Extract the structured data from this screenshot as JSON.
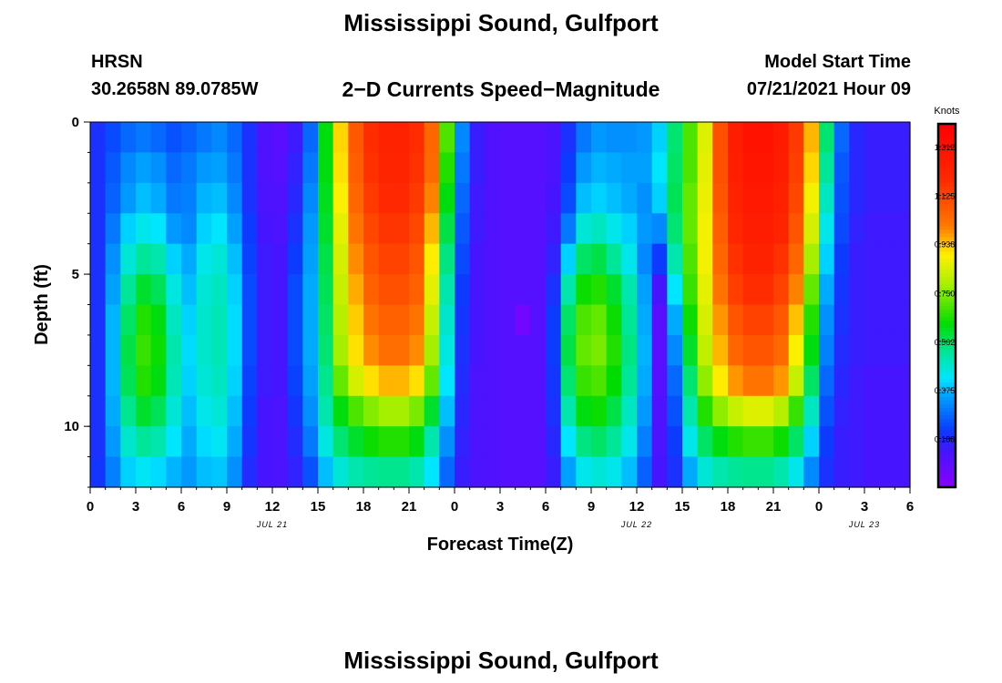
{
  "header": {
    "title": "Mississippi Sound, Gulfport",
    "station": "HRSN",
    "coords": "30.2658N  89.0785W",
    "model_label": "Model Start Time",
    "model_time": "07/21/2021 Hour 09",
    "footer_title": "Mississippi Sound, Gulfport"
  },
  "chart_data": {
    "type": "heatmap",
    "title": "2−D Currents Speed−Magnitude",
    "xlabel": "Forecast Time(Z)",
    "ylabel": "Depth (ft)",
    "colorbar_label": "Knots",
    "xlim": [
      0,
      54
    ],
    "ylim": [
      12,
      0
    ],
    "x_ticks": [
      {
        "v": 0,
        "label": "0"
      },
      {
        "v": 3,
        "label": "3"
      },
      {
        "v": 6,
        "label": "6"
      },
      {
        "v": 9,
        "label": "9"
      },
      {
        "v": 12,
        "label": "12"
      },
      {
        "v": 15,
        "label": "15"
      },
      {
        "v": 18,
        "label": "18"
      },
      {
        "v": 21,
        "label": "21"
      },
      {
        "v": 24,
        "label": "0"
      },
      {
        "v": 27,
        "label": "3"
      },
      {
        "v": 30,
        "label": "6"
      },
      {
        "v": 33,
        "label": "9"
      },
      {
        "v": 36,
        "label": "12"
      },
      {
        "v": 39,
        "label": "15"
      },
      {
        "v": 42,
        "label": "18"
      },
      {
        "v": 45,
        "label": "21"
      },
      {
        "v": 48,
        "label": "0"
      },
      {
        "v": 51,
        "label": "3"
      },
      {
        "v": 54,
        "label": "6"
      }
    ],
    "date_labels": [
      {
        "v": 12,
        "label": "JUL 21"
      },
      {
        "v": 36,
        "label": "JUL 22"
      },
      {
        "v": 51,
        "label": "JUL 23"
      }
    ],
    "y_ticks": [
      {
        "v": 0,
        "label": "0"
      },
      {
        "v": 5,
        "label": "5"
      },
      {
        "v": 10,
        "label": "10"
      }
    ],
    "colorbar": {
      "min": 0.0,
      "max": 1.4,
      "ticks": [
        {
          "v": 0.188,
          "label": "0.188"
        },
        {
          "v": 0.375,
          "label": "0.375"
        },
        {
          "v": 0.562,
          "label": "0.562"
        },
        {
          "v": 0.75,
          "label": "0.750"
        },
        {
          "v": 0.938,
          "label": "0.938"
        },
        {
          "v": 1.125,
          "label": "1.125"
        },
        {
          "v": 1.312,
          "label": "1.312"
        }
      ]
    },
    "depths": [
      0,
      1,
      2,
      3,
      4,
      5,
      6,
      7,
      8,
      9,
      10,
      11
    ],
    "times": [
      0,
      1,
      2,
      3,
      4,
      5,
      6,
      7,
      8,
      9,
      10,
      11,
      12,
      13,
      14,
      15,
      16,
      17,
      18,
      19,
      20,
      21,
      22,
      23,
      24,
      25,
      26,
      27,
      28,
      29,
      30,
      31,
      32,
      33,
      34,
      35,
      36,
      37,
      38,
      39,
      40,
      41,
      42,
      43,
      44,
      45,
      46,
      47,
      48,
      49,
      50,
      51,
      52,
      53
    ],
    "values": [
      [
        0.2,
        0.24,
        0.28,
        0.3,
        0.28,
        0.25,
        0.27,
        0.3,
        0.32,
        0.28,
        0.2,
        0.12,
        0.1,
        0.15,
        0.28,
        0.62,
        0.92,
        1.08,
        1.18,
        1.22,
        1.22,
        1.18,
        1.05,
        0.7,
        0.32,
        0.16,
        0.12,
        0.11,
        0.11,
        0.11,
        0.13,
        0.2,
        0.3,
        0.34,
        0.33,
        0.33,
        0.34,
        0.4,
        0.55,
        0.7,
        0.85,
        1.1,
        1.25,
        1.3,
        1.3,
        1.26,
        1.15,
        0.95,
        0.55,
        0.28,
        0.18,
        0.16,
        0.16,
        0.16
      ],
      [
        0.2,
        0.26,
        0.32,
        0.35,
        0.33,
        0.28,
        0.3,
        0.34,
        0.35,
        0.3,
        0.2,
        0.12,
        0.11,
        0.17,
        0.3,
        0.62,
        0.91,
        1.07,
        1.17,
        1.21,
        1.21,
        1.17,
        1.04,
        0.66,
        0.3,
        0.16,
        0.12,
        0.11,
        0.11,
        0.11,
        0.13,
        0.22,
        0.34,
        0.37,
        0.36,
        0.35,
        0.35,
        0.42,
        0.56,
        0.7,
        0.86,
        1.1,
        1.24,
        1.29,
        1.29,
        1.25,
        1.14,
        0.92,
        0.52,
        0.26,
        0.18,
        0.16,
        0.16,
        0.16
      ],
      [
        0.2,
        0.27,
        0.34,
        0.38,
        0.36,
        0.3,
        0.31,
        0.37,
        0.38,
        0.32,
        0.2,
        0.13,
        0.12,
        0.18,
        0.32,
        0.61,
        0.89,
        1.05,
        1.15,
        1.19,
        1.19,
        1.15,
        1.0,
        0.62,
        0.28,
        0.15,
        0.12,
        0.11,
        0.11,
        0.11,
        0.14,
        0.24,
        0.38,
        0.4,
        0.38,
        0.36,
        0.33,
        0.4,
        0.57,
        0.72,
        0.87,
        1.09,
        1.22,
        1.27,
        1.27,
        1.23,
        1.12,
        0.88,
        0.48,
        0.25,
        0.18,
        0.16,
        0.16,
        0.16
      ],
      [
        0.2,
        0.3,
        0.4,
        0.44,
        0.42,
        0.34,
        0.32,
        0.4,
        0.42,
        0.35,
        0.22,
        0.14,
        0.13,
        0.2,
        0.34,
        0.6,
        0.86,
        1.02,
        1.12,
        1.16,
        1.16,
        1.12,
        0.95,
        0.58,
        0.26,
        0.15,
        0.12,
        0.11,
        0.11,
        0.11,
        0.15,
        0.3,
        0.46,
        0.48,
        0.44,
        0.4,
        0.34,
        0.32,
        0.55,
        0.72,
        0.88,
        1.07,
        1.2,
        1.25,
        1.25,
        1.21,
        1.09,
        0.84,
        0.44,
        0.24,
        0.17,
        0.15,
        0.15,
        0.15
      ],
      [
        0.2,
        0.33,
        0.46,
        0.52,
        0.5,
        0.4,
        0.36,
        0.44,
        0.46,
        0.38,
        0.23,
        0.15,
        0.14,
        0.22,
        0.35,
        0.58,
        0.84,
        0.99,
        1.09,
        1.13,
        1.13,
        1.09,
        0.9,
        0.54,
        0.24,
        0.14,
        0.12,
        0.11,
        0.11,
        0.11,
        0.17,
        0.4,
        0.56,
        0.58,
        0.52,
        0.44,
        0.32,
        0.22,
        0.5,
        0.7,
        0.88,
        1.05,
        1.17,
        1.22,
        1.22,
        1.17,
        1.05,
        0.78,
        0.4,
        0.22,
        0.16,
        0.15,
        0.15,
        0.15
      ],
      [
        0.2,
        0.35,
        0.52,
        0.6,
        0.57,
        0.45,
        0.38,
        0.46,
        0.48,
        0.4,
        0.24,
        0.15,
        0.14,
        0.24,
        0.36,
        0.57,
        0.82,
        0.96,
        1.06,
        1.1,
        1.1,
        1.06,
        0.86,
        0.5,
        0.22,
        0.14,
        0.12,
        0.11,
        0.11,
        0.11,
        0.2,
        0.5,
        0.64,
        0.66,
        0.6,
        0.5,
        0.35,
        0.14,
        0.42,
        0.68,
        0.86,
        1.02,
        1.14,
        1.18,
        1.18,
        1.13,
        1.0,
        0.72,
        0.36,
        0.21,
        0.16,
        0.15,
        0.15,
        0.15
      ],
      [
        0.2,
        0.37,
        0.56,
        0.66,
        0.62,
        0.48,
        0.4,
        0.47,
        0.49,
        0.41,
        0.24,
        0.15,
        0.14,
        0.24,
        0.36,
        0.56,
        0.8,
        0.93,
        1.02,
        1.06,
        1.06,
        1.02,
        0.82,
        0.47,
        0.21,
        0.14,
        0.12,
        0.11,
        0.05,
        0.11,
        0.22,
        0.56,
        0.7,
        0.72,
        0.64,
        0.52,
        0.36,
        0.1,
        0.36,
        0.64,
        0.84,
        0.98,
        1.09,
        1.13,
        1.13,
        1.08,
        0.94,
        0.66,
        0.33,
        0.2,
        0.16,
        0.15,
        0.15,
        0.15
      ],
      [
        0.2,
        0.37,
        0.58,
        0.68,
        0.64,
        0.5,
        0.41,
        0.47,
        0.49,
        0.41,
        0.24,
        0.15,
        0.14,
        0.24,
        0.36,
        0.55,
        0.78,
        0.91,
        0.99,
        1.03,
        1.03,
        0.99,
        0.78,
        0.45,
        0.2,
        0.14,
        0.12,
        0.11,
        0.11,
        0.11,
        0.22,
        0.58,
        0.72,
        0.74,
        0.66,
        0.54,
        0.37,
        0.1,
        0.32,
        0.6,
        0.81,
        0.95,
        1.05,
        1.09,
        1.09,
        1.04,
        0.89,
        0.62,
        0.31,
        0.19,
        0.16,
        0.15,
        0.15,
        0.15
      ],
      [
        0.2,
        0.37,
        0.57,
        0.66,
        0.62,
        0.49,
        0.4,
        0.46,
        0.48,
        0.4,
        0.23,
        0.15,
        0.14,
        0.23,
        0.35,
        0.53,
        0.72,
        0.84,
        0.91,
        0.95,
        0.95,
        0.91,
        0.72,
        0.42,
        0.19,
        0.13,
        0.12,
        0.11,
        0.11,
        0.11,
        0.21,
        0.55,
        0.68,
        0.7,
        0.63,
        0.52,
        0.36,
        0.11,
        0.28,
        0.55,
        0.76,
        0.9,
        0.98,
        1.02,
        1.02,
        0.98,
        0.82,
        0.56,
        0.28,
        0.18,
        0.15,
        0.14,
        0.14,
        0.14
      ],
      [
        0.2,
        0.36,
        0.53,
        0.6,
        0.57,
        0.46,
        0.38,
        0.44,
        0.46,
        0.38,
        0.22,
        0.14,
        0.13,
        0.21,
        0.33,
        0.5,
        0.62,
        0.7,
        0.75,
        0.78,
        0.78,
        0.74,
        0.6,
        0.38,
        0.18,
        0.13,
        0.12,
        0.11,
        0.11,
        0.11,
        0.2,
        0.5,
        0.62,
        0.64,
        0.58,
        0.48,
        0.34,
        0.12,
        0.25,
        0.5,
        0.66,
        0.76,
        0.82,
        0.85,
        0.85,
        0.8,
        0.68,
        0.48,
        0.25,
        0.17,
        0.15,
        0.14,
        0.14,
        0.14
      ],
      [
        0.2,
        0.34,
        0.47,
        0.52,
        0.5,
        0.42,
        0.36,
        0.41,
        0.43,
        0.36,
        0.21,
        0.14,
        0.13,
        0.19,
        0.3,
        0.45,
        0.55,
        0.6,
        0.64,
        0.66,
        0.66,
        0.62,
        0.5,
        0.33,
        0.17,
        0.13,
        0.12,
        0.11,
        0.11,
        0.11,
        0.18,
        0.42,
        0.54,
        0.56,
        0.52,
        0.44,
        0.31,
        0.13,
        0.22,
        0.44,
        0.56,
        0.62,
        0.66,
        0.68,
        0.68,
        0.64,
        0.56,
        0.4,
        0.22,
        0.16,
        0.15,
        0.14,
        0.14,
        0.14
      ],
      [
        0.21,
        0.31,
        0.4,
        0.43,
        0.41,
        0.37,
        0.34,
        0.38,
        0.39,
        0.33,
        0.19,
        0.14,
        0.13,
        0.17,
        0.25,
        0.38,
        0.46,
        0.5,
        0.52,
        0.53,
        0.53,
        0.5,
        0.42,
        0.28,
        0.16,
        0.13,
        0.12,
        0.11,
        0.11,
        0.11,
        0.16,
        0.35,
        0.44,
        0.46,
        0.44,
        0.38,
        0.27,
        0.14,
        0.2,
        0.36,
        0.46,
        0.5,
        0.52,
        0.53,
        0.53,
        0.5,
        0.44,
        0.32,
        0.2,
        0.16,
        0.15,
        0.14,
        0.14,
        0.14
      ]
    ]
  }
}
